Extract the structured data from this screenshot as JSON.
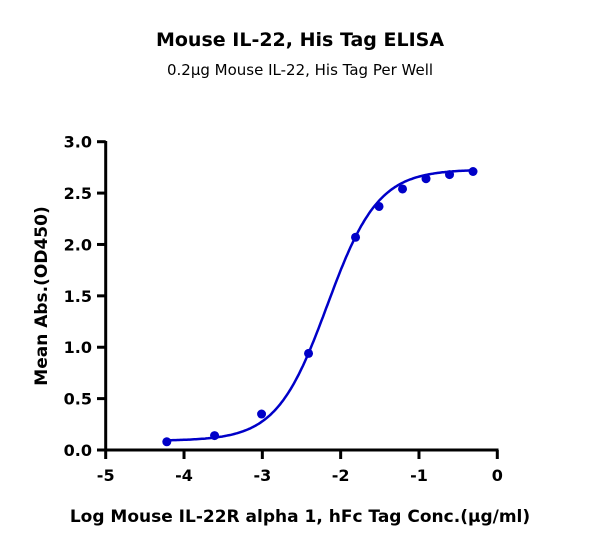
{
  "chart_data": {
    "type": "scatter",
    "title": "Mouse IL-22, His Tag ELISA",
    "subtitle": "0.2μg Mouse IL-22, His Tag Per Well",
    "xlabel": "Log Mouse IL-22R alpha 1, hFc Tag Conc.(μg/ml)",
    "ylabel": "Mean Abs.(OD450)",
    "xlim": [
      -5,
      0
    ],
    "ylim": [
      0,
      3.0
    ],
    "xticks": [
      "-5",
      "-4",
      "-3",
      "-2",
      "-1",
      "0"
    ],
    "yticks": [
      "0.0",
      "0.5",
      "1.0",
      "1.5",
      "2.0",
      "2.5",
      "3.0"
    ],
    "grid": false,
    "color": "#0000c8",
    "series": [
      {
        "x": [
          -4.22,
          -3.61,
          -3.01,
          -2.41,
          -1.81,
          -1.51,
          -1.21,
          -0.91,
          -0.61,
          -0.31
        ],
        "y": [
          0.08,
          0.14,
          0.35,
          0.94,
          2.07,
          2.37,
          2.54,
          2.64,
          2.68,
          2.71
        ]
      }
    ],
    "fit": {
      "model": "4PL",
      "bottom": 0.09,
      "top": 2.73,
      "logEC50": -2.17,
      "hill": 1.34
    }
  }
}
